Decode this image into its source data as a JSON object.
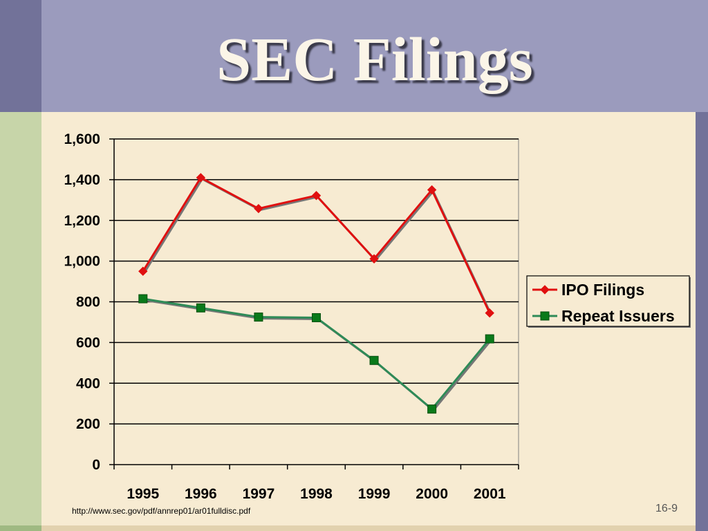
{
  "slide": {
    "title": "SEC Filings",
    "source_url": "http://www.sec.gov/pdf/annrep01/ar01fulldisc.pdf",
    "slide_number": "16-9"
  },
  "colors": {
    "title_band": "#9b9bbd",
    "side_bar_dark": "#727299",
    "side_bar_green": "#c7d5a9",
    "background": "#f7ebd2",
    "ipo_series": "#e01010",
    "repeat_series": "#2e8b57",
    "repeat_marker": "#0a7a1a"
  },
  "chart_data": {
    "type": "line",
    "categories": [
      "1995",
      "1996",
      "1997",
      "1998",
      "1999",
      "2000",
      "2001"
    ],
    "ylim": [
      0,
      1600
    ],
    "y_ticks": [
      "0",
      "200",
      "400",
      "600",
      "800",
      "1,000",
      "1,200",
      "1,400",
      "1,600"
    ],
    "grid": true,
    "legend_position": "right",
    "series": [
      {
        "name": "IPO Filings",
        "marker": "diamond",
        "color": "#e01010",
        "values": [
          950,
          1410,
          1258,
          1322,
          1011,
          1350,
          745
        ]
      },
      {
        "name": "Repeat Issuers",
        "marker": "square",
        "color": "#2e8b57",
        "values": [
          815,
          770,
          725,
          722,
          512,
          273,
          618
        ]
      }
    ]
  }
}
